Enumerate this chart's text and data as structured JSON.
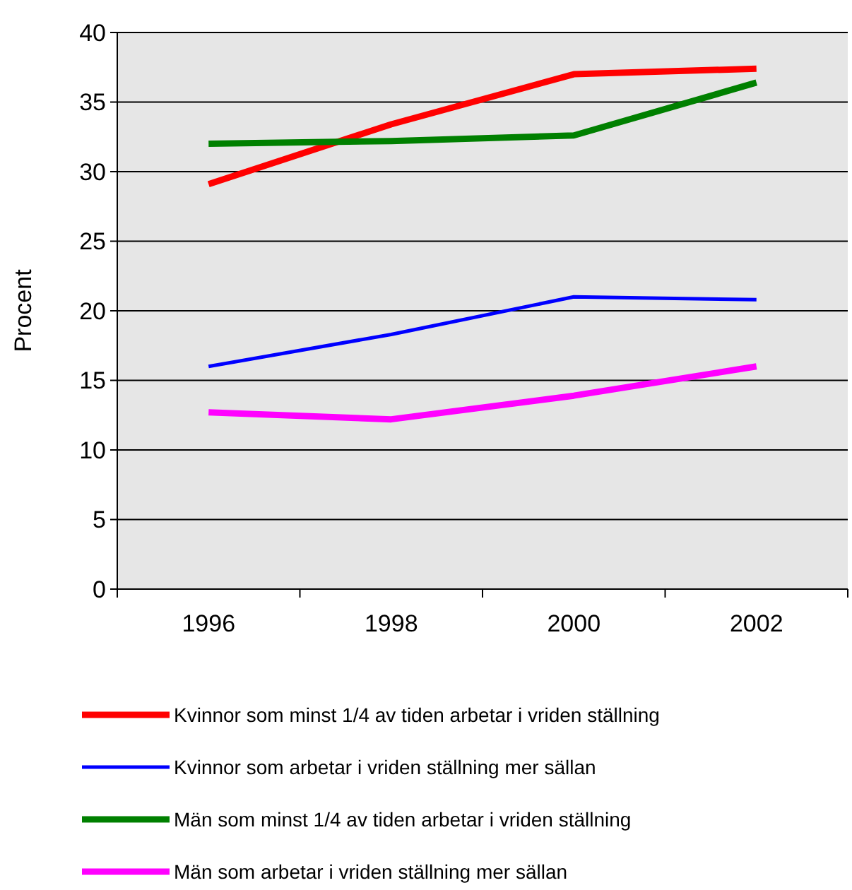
{
  "chart_data": {
    "type": "line",
    "ylabel": "Procent",
    "categories": [
      "1996",
      "1998",
      "2000",
      "2002"
    ],
    "series": [
      {
        "name": "Kvinnor som minst 1/4 av tiden arbetar i vriden ställning",
        "color": "#ff0000",
        "values": [
          29.1,
          33.4,
          37.0,
          37.4
        ]
      },
      {
        "name": "Kvinnor som arbetar i vriden ställning mer sällan",
        "color": "#0000ff",
        "values": [
          16.0,
          18.3,
          21.0,
          20.8
        ]
      },
      {
        "name": "Män som minst 1/4 av tiden arbetar i vriden ställning",
        "color": "#008000",
        "values": [
          32.0,
          32.2,
          32.6,
          36.4
        ]
      },
      {
        "name": "Män som arbetar i vriden ställning mer sällan",
        "color": "#ff00ff",
        "values": [
          12.7,
          12.2,
          13.9,
          16.0
        ]
      }
    ],
    "ylim": [
      0,
      40
    ],
    "yticks": [
      0,
      5,
      10,
      15,
      20,
      25,
      30,
      35,
      40
    ],
    "grid": "y",
    "legend": "bottom",
    "marker": "none",
    "line_style": "solid"
  }
}
